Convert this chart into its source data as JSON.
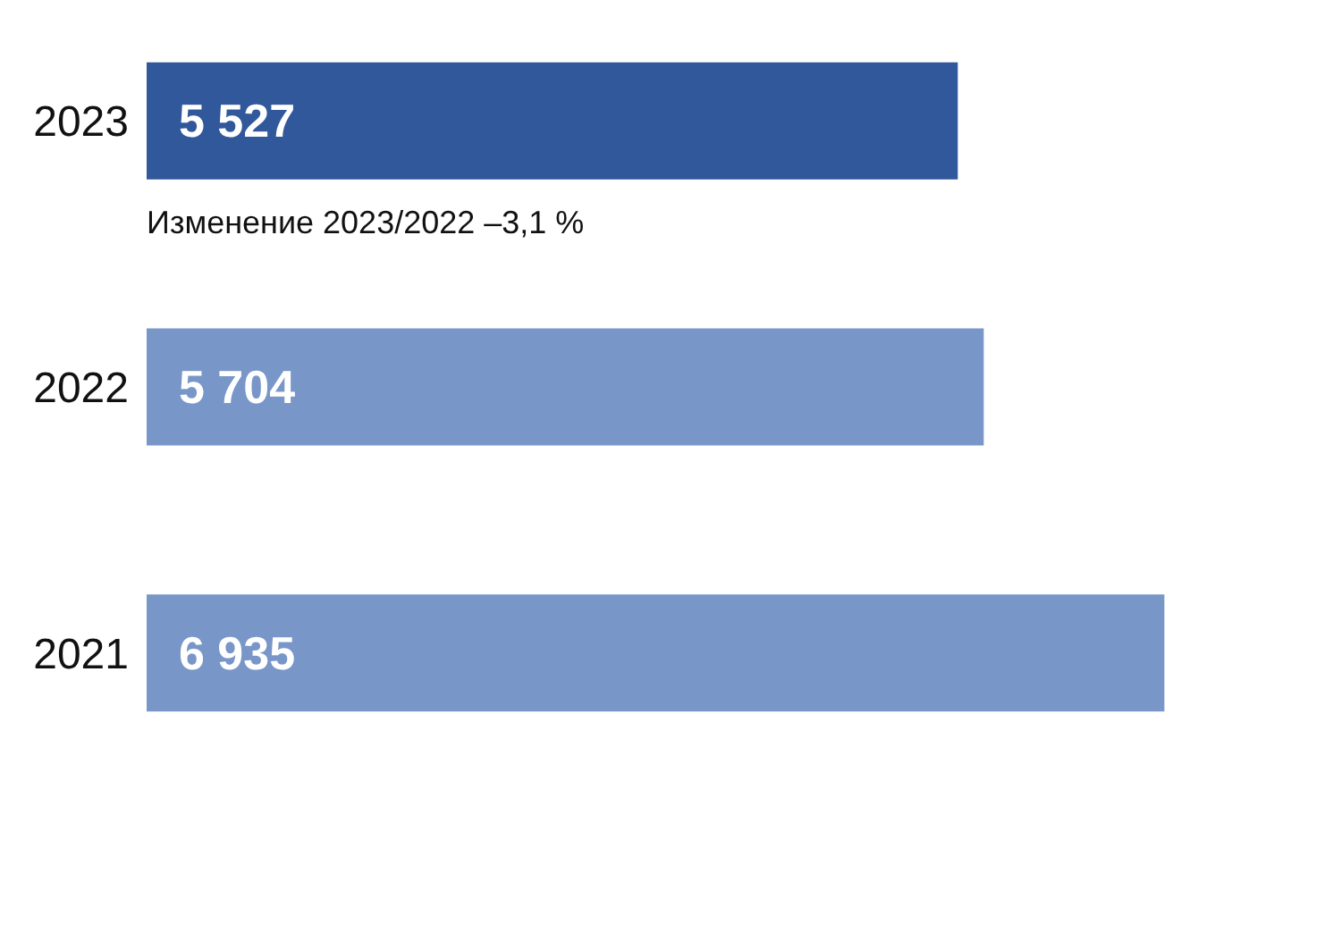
{
  "chart_data": {
    "type": "bar",
    "orientation": "horizontal",
    "categories": [
      "2023",
      "2022",
      "2021"
    ],
    "values": [
      5527,
      5704,
      6935
    ],
    "colors": [
      "#30589a",
      "#7896c8",
      "#7896c8"
    ],
    "value_labels": [
      "5 527",
      "5 704",
      "6 935"
    ],
    "annotations": [
      "Изменение 2023/2022 –3,1 %"
    ]
  }
}
